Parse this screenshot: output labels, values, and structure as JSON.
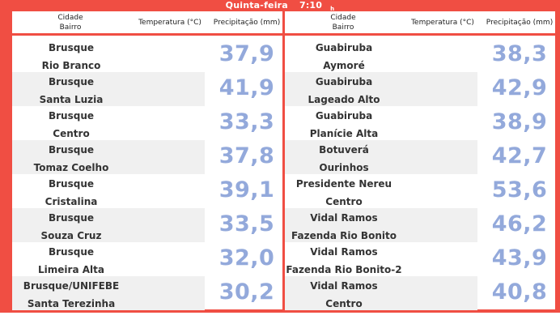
{
  "header": {
    "day": "Quinta-feira",
    "time": "7:10",
    "time_suffix": "h"
  },
  "columns": {
    "cidade": "Cidade",
    "bairro": "Bairro",
    "temperatura": "Temperatura (°C)",
    "precipitacao": "Precipitação (mm)"
  },
  "left": [
    {
      "city": "Brusque",
      "bairro": "Rio Branco",
      "value": "37,9"
    },
    {
      "city": "Brusque",
      "bairro": "Santa Luzia",
      "value": "41,9"
    },
    {
      "city": "Brusque",
      "bairro": "Centro",
      "value": "33,3"
    },
    {
      "city": "Brusque",
      "bairro": "Tomaz Coelho",
      "value": "37,8"
    },
    {
      "city": "Brusque",
      "bairro": "Cristalina",
      "value": "39,1"
    },
    {
      "city": "Brusque",
      "bairro": "Souza Cruz",
      "value": "33,5"
    },
    {
      "city": "Brusque",
      "bairro": "Limeira Alta",
      "value": "32,0"
    },
    {
      "city": "Brusque/UNIFEBE",
      "bairro": "Santa Terezinha",
      "value": "30,2"
    }
  ],
  "right": [
    {
      "city": "Guabiruba",
      "bairro": "Aymoré",
      "value": "38,3"
    },
    {
      "city": "Guabiruba",
      "bairro": "Lageado Alto",
      "value": "42,9"
    },
    {
      "city": "Guabiruba",
      "bairro": "Planície Alta",
      "value": "38,9"
    },
    {
      "city": "Botuverá",
      "bairro": "Ourinhos",
      "value": "42,7"
    },
    {
      "city": "Presidente Nereu",
      "bairro": "Centro",
      "value": "53,6"
    },
    {
      "city": "Vidal Ramos",
      "bairro": "Fazenda Rio Bonito",
      "value": "46,2"
    },
    {
      "city": "Vidal Ramos",
      "bairro": "Fazenda Rio Bonito-2",
      "value": "43,9"
    },
    {
      "city": "Vidal Ramos",
      "bairro": "Centro",
      "value": "40,8"
    }
  ]
}
